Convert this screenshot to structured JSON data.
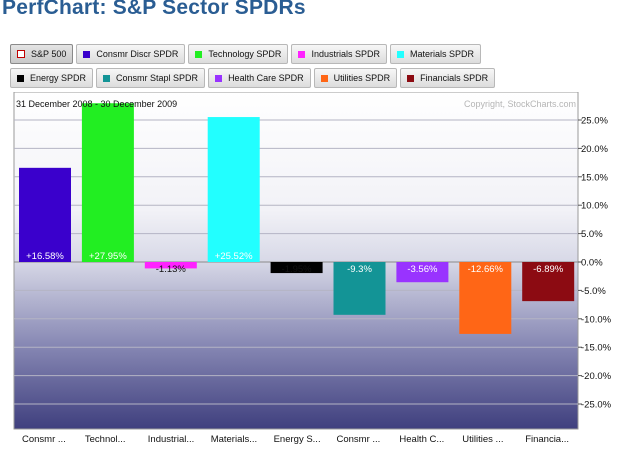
{
  "title": "PerfChart: S&P Sector SPDRs",
  "legend": {
    "row1": [
      {
        "label": "S&P 500",
        "color": "#ffffff",
        "active": true
      },
      {
        "label": "Consmr Discr SPDR",
        "color": "#3a00cc"
      },
      {
        "label": "Technology SPDR",
        "color": "#22ee22"
      },
      {
        "label": "Industrials SPDR",
        "color": "#ff22ff"
      },
      {
        "label": "Materials SPDR",
        "color": "#22ffff"
      }
    ],
    "row2": [
      {
        "label": "Energy SPDR",
        "color": "#000000"
      },
      {
        "label": "Consmr Stapl SPDR",
        "color": "#139496"
      },
      {
        "label": "Health Care SPDR",
        "color": "#9933ff"
      },
      {
        "label": "Utilities SPDR",
        "color": "#ff6616"
      },
      {
        "label": "Financials SPDR",
        "color": "#8c0b12"
      }
    ]
  },
  "chart_data": {
    "type": "bar",
    "date_range": "31 December 2008 - 30 December 2009",
    "copyright": "Copyright, StockCharts.com",
    "categories": [
      "Consmr ...",
      "Technol...",
      "Industrial...",
      "Materials...",
      "Energy S...",
      "Consmr ...",
      "Health C...",
      "Utilities ...",
      "Financia..."
    ],
    "values": [
      16.58,
      27.95,
      -1.13,
      25.52,
      -1.95,
      -9.3,
      -3.56,
      -12.66,
      -6.89
    ],
    "data_labels": [
      "+16.58%",
      "+27.95%",
      "-1.13%",
      "+25.52%",
      "-1.95%",
      "-9.3%",
      "-3.56%",
      "-12.66%",
      "-6.89%"
    ],
    "colors": [
      "#3a00cc",
      "#22ee22",
      "#ff22ff",
      "#22ffff",
      "#000000",
      "#139496",
      "#9933ff",
      "#ff6616",
      "#8c0b12"
    ],
    "yticks": [
      25,
      20,
      15,
      10,
      5,
      0,
      -5,
      -10,
      -15,
      -20,
      -25
    ],
    "ytick_labels": [
      "25.0%",
      "20.0%",
      "15.0%",
      "10.0%",
      "5.0%",
      "0.0%",
      "-5.0%",
      "-10.0%",
      "-15.0%",
      "-20.0%",
      "-25.0%"
    ],
    "ylim": [
      -29,
      29
    ],
    "grid": true
  }
}
